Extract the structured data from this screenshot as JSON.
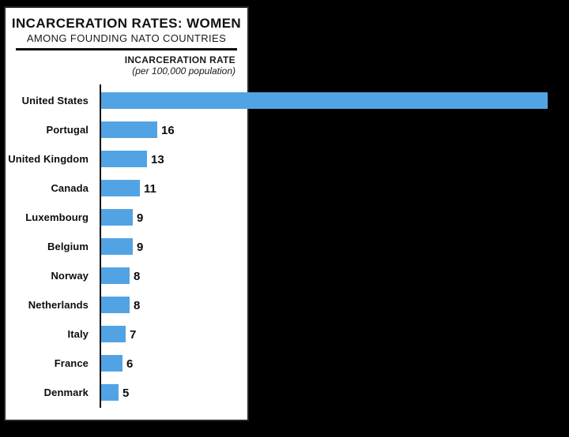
{
  "panel": {
    "title": "INCARCERATION RATES: WOMEN",
    "subtitle": "AMONG FOUNDING NATO COUNTRIES",
    "axis_title_line1": "INCARCERATION RATE",
    "axis_title_line2": "(per 100,000 population)"
  },
  "colors": {
    "background": "#000000",
    "panel_bg": "#ffffff",
    "bar_blue": "#52A3E4",
    "text": "#0d0d0d"
  },
  "chart_data": {
    "type": "bar",
    "orientation": "horizontal",
    "title": "INCARCERATION RATES: WOMEN",
    "subtitle": "AMONG FOUNDING NATO COUNTRIES",
    "xlabel": "INCARCERATION RATE (per 100,000 population)",
    "ylabel": "",
    "xlim": [
      0,
      130
    ],
    "grid": false,
    "legend": "none",
    "categories": [
      "United States",
      "Portugal",
      "United Kingdom",
      "Canada",
      "Luxembourg",
      "Belgium",
      "Norway",
      "Netherlands",
      "Italy",
      "France",
      "Denmark"
    ],
    "values": [
      127,
      16,
      13,
      11,
      9,
      9,
      8,
      8,
      7,
      6,
      5
    ],
    "value_labels": [
      "",
      "16",
      "13",
      "11",
      "9",
      "9",
      "8",
      "8",
      "7",
      "6",
      "5"
    ],
    "note": "United States bar overflows the chart frame; its numeric label is not visible in the image"
  }
}
